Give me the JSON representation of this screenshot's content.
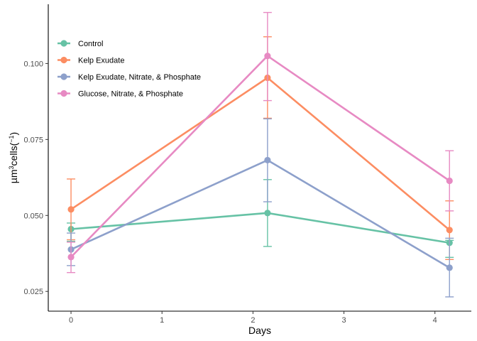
{
  "chart_data": {
    "type": "line",
    "xlabel": "Days",
    "ylabel": {
      "base": "µm",
      "sup1": "3",
      "mid": "cells",
      "sup2": "−1",
      "open": "(",
      "close": ")"
    },
    "xlim": [
      -0.25,
      4.4
    ],
    "ylim": [
      0.0185,
      0.1195
    ],
    "x_ticks": [
      0,
      1,
      2,
      3,
      4
    ],
    "x_tick_labels": [
      "0",
      "1",
      "2",
      "3",
      "4"
    ],
    "y_ticks": [
      0.025,
      0.05,
      0.075,
      0.1
    ],
    "y_tick_labels": [
      "0.025",
      "0.050",
      "0.075",
      "0.100"
    ],
    "grid": false,
    "legend_position": "top-left",
    "series": [
      {
        "name": "Control",
        "color": "#66c2a5",
        "points": [
          {
            "x": 0,
            "y": 0.0455,
            "err_low": 0.0415,
            "err_high": 0.0475
          },
          {
            "x": 2.16,
            "y": 0.0508,
            "err_low": 0.0398,
            "err_high": 0.0618
          },
          {
            "x": 4.16,
            "y": 0.041,
            "err_low": 0.0362,
            "err_high": 0.0418
          }
        ]
      },
      {
        "name": "Kelp Exudate",
        "color": "#fc8d62",
        "points": [
          {
            "x": 0,
            "y": 0.052,
            "err_low": 0.042,
            "err_high": 0.062
          },
          {
            "x": 2.16,
            "y": 0.0953,
            "err_low": 0.082,
            "err_high": 0.1088
          },
          {
            "x": 4.16,
            "y": 0.0452,
            "err_low": 0.0355,
            "err_high": 0.0548
          }
        ]
      },
      {
        "name": "Kelp Exudate, Nitrate, & Phosphate",
        "color": "#8da0cb",
        "points": [
          {
            "x": 0,
            "y": 0.0388,
            "err_low": 0.0335,
            "err_high": 0.0442
          },
          {
            "x": 2.16,
            "y": 0.0682,
            "err_low": 0.0545,
            "err_high": 0.0818
          },
          {
            "x": 4.16,
            "y": 0.0328,
            "err_low": 0.0232,
            "err_high": 0.0425
          }
        ]
      },
      {
        "name": "Glucose, Nitrate, & Phosphate",
        "color": "#e78ac3",
        "points": [
          {
            "x": 0,
            "y": 0.0363,
            "err_low": 0.0312,
            "err_high": 0.0412
          },
          {
            "x": 2.16,
            "y": 0.1025,
            "err_low": 0.0878,
            "err_high": 0.1168
          },
          {
            "x": 4.16,
            "y": 0.0614,
            "err_low": 0.0515,
            "err_high": 0.0713
          }
        ]
      }
    ]
  }
}
